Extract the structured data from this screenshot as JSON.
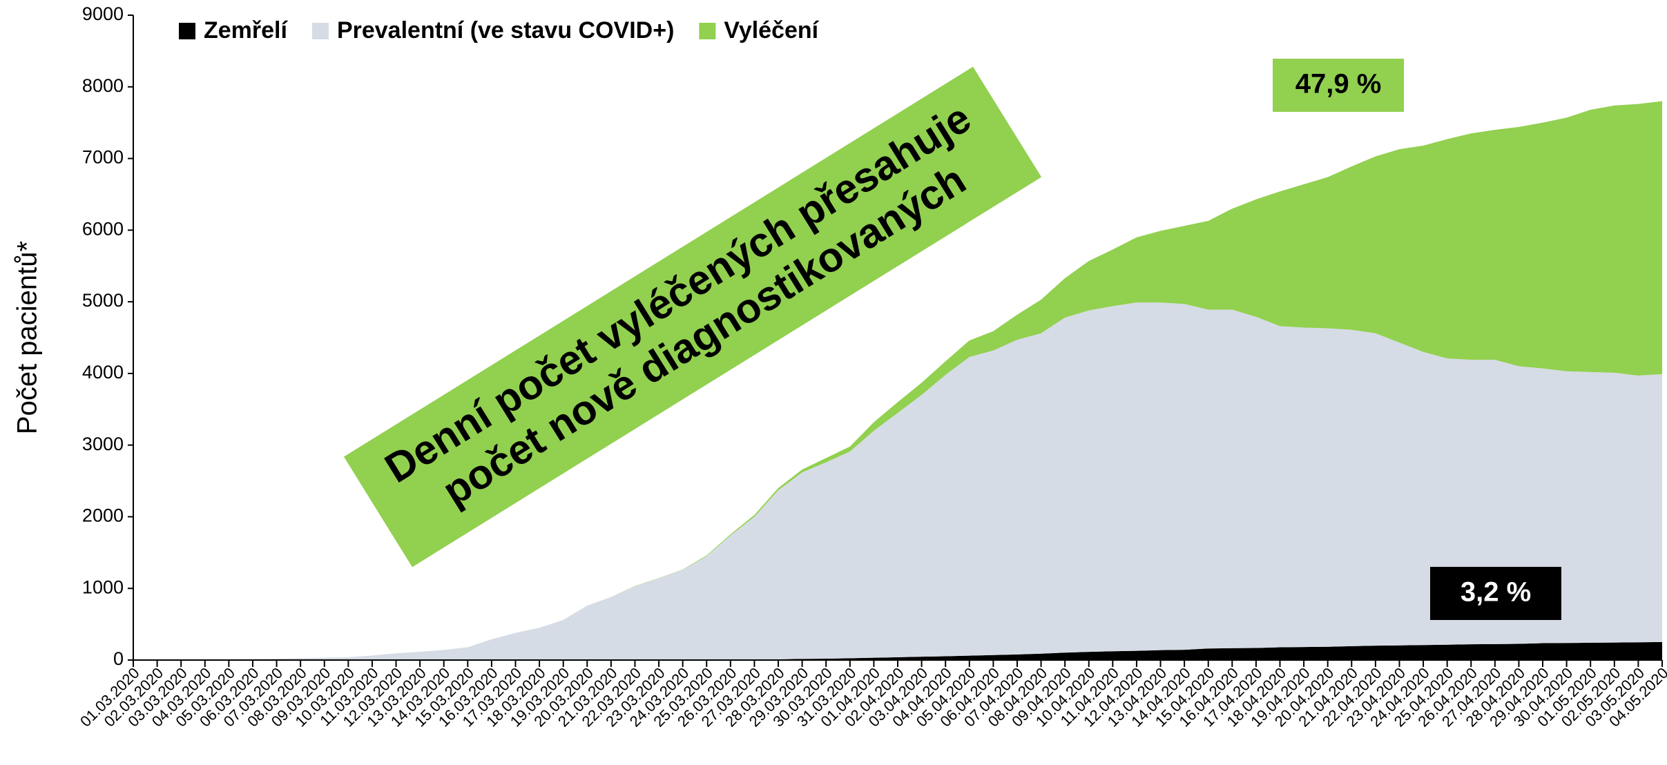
{
  "chart_data": {
    "type": "stacked_area",
    "ylabel": "Počet pacientů*",
    "categories": [
      "01.03.2020",
      "02.03.2020",
      "03.03.2020",
      "04.03.2020",
      "05.03.2020",
      "06.03.2020",
      "07.03.2020",
      "08.03.2020",
      "09.03.2020",
      "10.03.2020",
      "11.03.2020",
      "12.03.2020",
      "13.03.2020",
      "14.03.2020",
      "15.03.2020",
      "16.03.2020",
      "17.03.2020",
      "18.03.2020",
      "19.03.2020",
      "20.03.2020",
      "21.03.2020",
      "22.03.2020",
      "23.03.2020",
      "24.03.2020",
      "25.03.2020",
      "26.03.2020",
      "27.03.2020",
      "28.03.2020",
      "29.03.2020",
      "30.03.2020",
      "31.03.2020",
      "01.04.2020",
      "02.04.2020",
      "03.04.2020",
      "04.04.2020",
      "05.04.2020",
      "06.04.2020",
      "07.04.2020",
      "08.04.2020",
      "09.04.2020",
      "10.04.2020",
      "11.04.2020",
      "12.04.2020",
      "13.04.2020",
      "14.04.2020",
      "15.04.2020",
      "16.04.2020",
      "17.04.2020",
      "18.04.2020",
      "19.04.2020",
      "20.04.2020",
      "21.04.2020",
      "22.04.2020",
      "23.04.2020",
      "24.04.2020",
      "25.04.2020",
      "26.04.2020",
      "27.04.2020",
      "28.04.2020",
      "29.04.2020",
      "30.04.2020",
      "01.05.2020",
      "02.05.2020",
      "03.05.2020",
      "04.05.2020"
    ],
    "series": [
      {
        "name": "Zemřelí",
        "color": "#000000",
        "values": [
          0,
          0,
          0,
          0,
          0,
          0,
          0,
          0,
          0,
          0,
          0,
          0,
          0,
          0,
          0,
          0,
          0,
          0,
          0,
          0,
          0,
          1,
          2,
          3,
          3,
          6,
          9,
          10,
          16,
          19,
          25,
          32,
          40,
          47,
          53,
          62,
          70,
          78,
          89,
          104,
          115,
          123,
          129,
          138,
          143,
          161,
          166,
          169,
          178,
          182,
          186,
          194,
          201,
          205,
          210,
          214,
          220,
          223,
          227,
          236,
          238,
          242,
          245,
          248,
          252
        ]
      },
      {
        "name": "Prevalentní (ve stavu COVID+)",
        "color": "#d6dce5",
        "values": [
          0,
          0,
          3,
          5,
          8,
          12,
          19,
          26,
          32,
          40,
          63,
          94,
          116,
          141,
          180,
          290,
          380,
          450,
          560,
          760,
          880,
          1029,
          1138,
          1257,
          1447,
          1734,
          1991,
          2360,
          2604,
          2741,
          2885,
          3168,
          3410,
          3653,
          3927,
          4168,
          4250,
          4392,
          4471,
          4676,
          4765,
          4817,
          4861,
          4852,
          4827,
          4729,
          4724,
          4621,
          4482,
          4458,
          4444,
          4416,
          4359,
          4225,
          4090,
          3996,
          3970,
          3967,
          3873,
          3834,
          3792,
          3778,
          3765,
          3722,
          3738
        ]
      },
      {
        "name": "Vyléčení",
        "color": "#92d050",
        "values": [
          0,
          0,
          0,
          0,
          0,
          0,
          0,
          0,
          0,
          0,
          0,
          0,
          0,
          0,
          0,
          0,
          0,
          0,
          0,
          0,
          0,
          3,
          3,
          3,
          10,
          15,
          25,
          30,
          40,
          60,
          70,
          120,
          150,
          170,
          190,
          230,
          270,
          350,
          470,
          550,
          690,
          790,
          910,
          1000,
          1090,
          1240,
          1410,
          1640,
          1880,
          2000,
          2110,
          2280,
          2470,
          2700,
          2880,
          3060,
          3160,
          3210,
          3340,
          3430,
          3540,
          3660,
          3730,
          3790,
          3810
        ]
      }
    ],
    "ylim": [
      0,
      9000
    ],
    "yticks": [
      0,
      1000,
      2000,
      3000,
      4000,
      5000,
      6000,
      7000,
      8000,
      9000
    ],
    "annotations": [
      "47,9 %",
      "3,2 %"
    ],
    "banner": [
      "Denní počet vyléčených přesahuje",
      "počet nově diagnostikovaných"
    ]
  }
}
